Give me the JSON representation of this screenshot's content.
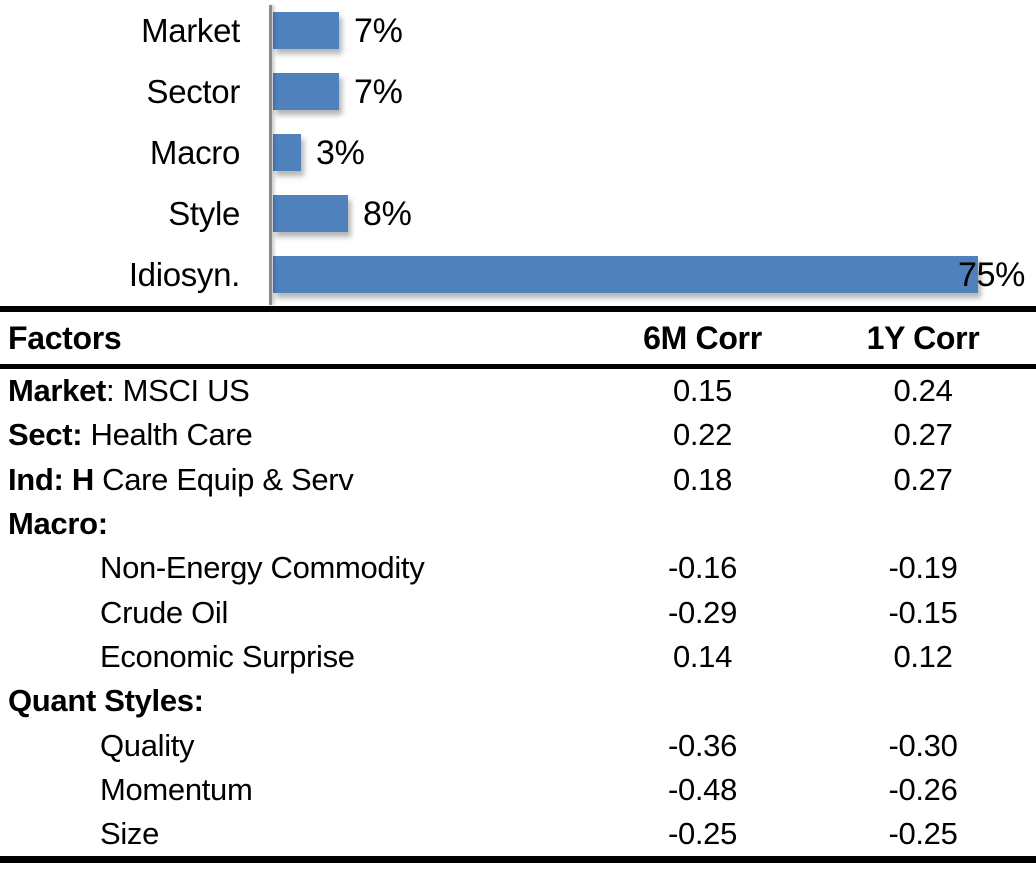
{
  "chart_data": {
    "type": "bar",
    "orientation": "horizontal",
    "title": "",
    "categories": [
      "Market",
      "Sector",
      "Macro",
      "Style",
      "Idiosyn."
    ],
    "values": [
      7,
      7,
      3,
      8,
      75
    ],
    "data_labels": [
      "7%",
      "7%",
      "3%",
      "8%",
      "75%"
    ],
    "xlim": [
      0,
      80
    ],
    "grid": "off",
    "legend": "none",
    "bar_color": "#4F81BD",
    "axis_color": "#8C8C8C"
  },
  "table": {
    "headers": [
      "Factors",
      "6M Corr",
      "1Y Corr"
    ],
    "rows": [
      {
        "bold": "Market",
        "rest": ": MSCI US",
        "indent": false,
        "c6m": "0.15",
        "c1y": "0.24"
      },
      {
        "bold": "Sect:",
        "rest": " Health Care",
        "indent": false,
        "c6m": "0.22",
        "c1y": "0.27"
      },
      {
        "bold": "Ind: H",
        "rest": " Care Equip & Serv",
        "indent": false,
        "c6m": "0.18",
        "c1y": "0.27"
      },
      {
        "bold": "Macro:",
        "rest": "",
        "indent": false,
        "c6m": "",
        "c1y": ""
      },
      {
        "bold": "",
        "rest": "Non-Energy Commodity",
        "indent": true,
        "c6m": "-0.16",
        "c1y": "-0.19"
      },
      {
        "bold": "",
        "rest": "Crude Oil",
        "indent": true,
        "c6m": "-0.29",
        "c1y": "-0.15"
      },
      {
        "bold": "",
        "rest": "Economic Surprise",
        "indent": true,
        "c6m": "0.14",
        "c1y": "0.12"
      },
      {
        "bold": "Quant Styles:",
        "rest": "",
        "indent": false,
        "c6m": "",
        "c1y": ""
      },
      {
        "bold": "",
        "rest": "Quality",
        "indent": true,
        "c6m": "-0.36",
        "c1y": "-0.30"
      },
      {
        "bold": "",
        "rest": "Momentum",
        "indent": true,
        "c6m": "-0.48",
        "c1y": "-0.26"
      },
      {
        "bold": "",
        "rest": "Size",
        "indent": true,
        "c6m": "-0.25",
        "c1y": "-0.25"
      }
    ]
  }
}
